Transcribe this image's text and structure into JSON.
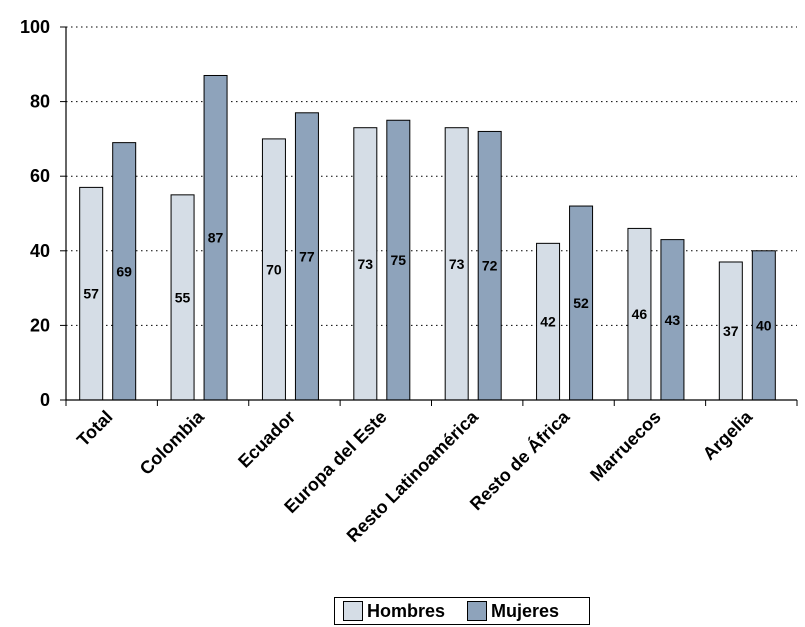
{
  "chart_data": {
    "type": "bar",
    "categories": [
      "Total",
      "Colombia",
      "Ecuador",
      "Europa del Este",
      "Resto Latinoamérica",
      "Resto de África",
      "Marruecos",
      "Argelia"
    ],
    "series": [
      {
        "name": "Hombres",
        "values": [
          57,
          55,
          70,
          73,
          73,
          42,
          46,
          37
        ],
        "color": "#d5dde6"
      },
      {
        "name": "Mujeres",
        "values": [
          69,
          87,
          77,
          75,
          72,
          52,
          43,
          40
        ],
        "color": "#8ea3bb"
      }
    ],
    "ylim": [
      0,
      100
    ],
    "yticks": [
      0,
      20,
      40,
      60,
      80,
      100
    ],
    "grid": true,
    "legend_position": "bottom"
  }
}
